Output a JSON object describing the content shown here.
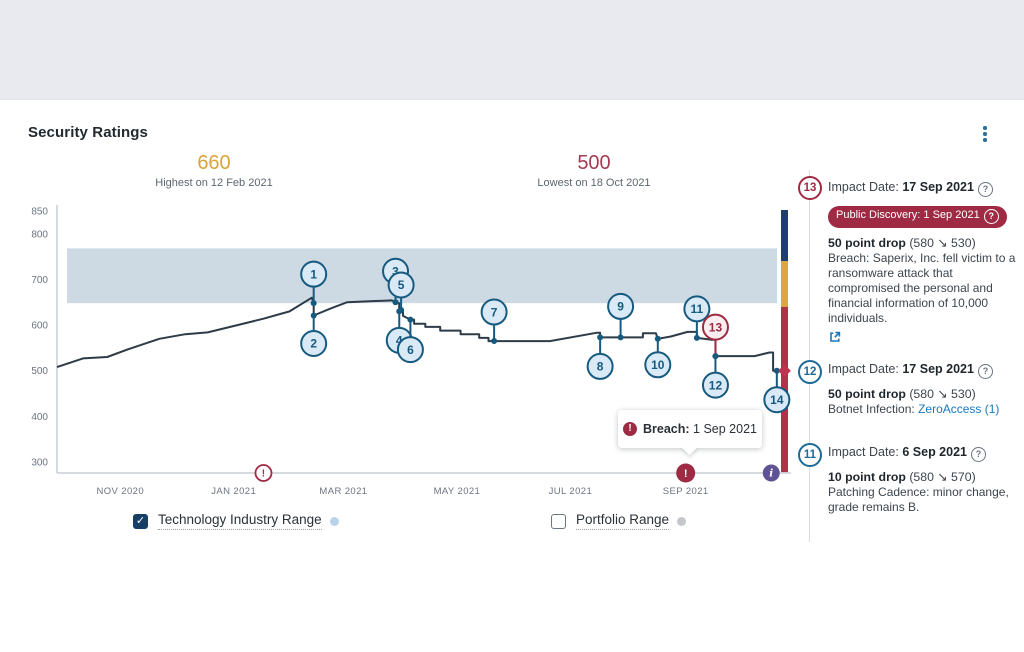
{
  "page": {
    "title": "Security Ratings"
  },
  "stats": {
    "highest": {
      "value": "660",
      "caption": "Highest on 12 Feb 2021"
    },
    "lowest": {
      "value": "500",
      "caption": "Lowest on 18 Oct 2021"
    }
  },
  "tooltip": {
    "label": "Breach:",
    "date": "1 Sep 2021"
  },
  "legend": [
    {
      "label": "Technology Industry Range",
      "checked": true,
      "dot": "#b9d3ea"
    },
    {
      "label": "Portfolio Range",
      "checked": false,
      "dot": "#c3c7cb"
    }
  ],
  "events": [
    {
      "n": "13",
      "accent": "#9e2b43",
      "impact_label": "Impact Date:",
      "impact_date": "17 Sep 2021",
      "badge": "Public Discovery: 1 Sep 2021",
      "drop": "50 point drop",
      "drop_detail": "(580 ↘ 530)",
      "desc": "Breach: Saperix, Inc. fell victim to a ransomware attack that compromised the personal and financial information of 10,000 individuals."
    },
    {
      "n": "12",
      "accent": "#1d6a96",
      "impact_label": "Impact Date:",
      "impact_date": "17 Sep 2021",
      "drop": "50 point drop",
      "drop_detail": "(580 ↘ 530)",
      "desc_prefix": "Botnet Infection: ",
      "desc_link": "ZeroAccess (1)"
    },
    {
      "n": "11",
      "accent": "#1d6a96",
      "impact_label": "Impact Date:",
      "impact_date": "6 Sep 2021",
      "drop": "10 point drop",
      "drop_detail": "(580 ↘ 570)",
      "desc": "Patching Cadence: minor change, grade remains B."
    }
  ],
  "chart_data": {
    "type": "line",
    "title": "Security Ratings over time",
    "ylim": [
      276,
      863
    ],
    "x_domain": [
      "2020-09-28",
      "2021-10-26"
    ],
    "y_ticks": [
      850,
      800,
      700,
      600,
      500,
      400,
      300
    ],
    "x_ticks": [
      {
        "label": "NOV 2020",
        "date": "2020-11-01"
      },
      {
        "label": "JAN 2021",
        "date": "2021-01-01"
      },
      {
        "label": "MAR 2021",
        "date": "2021-03-01"
      },
      {
        "label": "MAY 2021",
        "date": "2021-05-01"
      },
      {
        "label": "JUL 2021",
        "date": "2021-07-01"
      },
      {
        "label": "SEP 2021",
        "date": "2021-09-01"
      }
    ],
    "industry_band": {
      "name": "Technology Industry Range",
      "low": 648,
      "high": 768
    },
    "series": [
      {
        "name": "security-rating",
        "points": [
          [
            "2020-09-28",
            508
          ],
          [
            "2020-10-12",
            527
          ],
          [
            "2020-10-25",
            530
          ],
          [
            "2020-11-06",
            548
          ],
          [
            "2020-11-22",
            570
          ],
          [
            "2020-12-06",
            580
          ],
          [
            "2020-12-18",
            584
          ],
          [
            "2021-01-03",
            600
          ],
          [
            "2021-01-17",
            614
          ],
          [
            "2021-01-31",
            630
          ],
          [
            "2021-02-12",
            660
          ],
          [
            "2021-02-13",
            648
          ],
          [
            "2021-02-13",
            621
          ],
          [
            "2021-02-22",
            636
          ],
          [
            "2021-03-03",
            650
          ],
          [
            "2021-03-15",
            652
          ],
          [
            "2021-03-27",
            654
          ],
          [
            "2021-03-29",
            650
          ],
          [
            "2021-03-31",
            648
          ],
          [
            "2021-03-31",
            630
          ],
          [
            "2021-04-01",
            633
          ],
          [
            "2021-04-02",
            633
          ],
          [
            "2021-04-02",
            620
          ],
          [
            "2021-04-06",
            612
          ],
          [
            "2021-04-08",
            612
          ],
          [
            "2021-04-08",
            603
          ],
          [
            "2021-04-14",
            603
          ],
          [
            "2021-04-14",
            596
          ],
          [
            "2021-04-22",
            596
          ],
          [
            "2021-04-22",
            588
          ],
          [
            "2021-05-03",
            588
          ],
          [
            "2021-05-03",
            580
          ],
          [
            "2021-05-13",
            580
          ],
          [
            "2021-05-13",
            572
          ],
          [
            "2021-05-18",
            572
          ],
          [
            "2021-05-18",
            565
          ],
          [
            "2021-05-21",
            565
          ],
          [
            "2021-06-20",
            565
          ],
          [
            "2021-07-15",
            583
          ],
          [
            "2021-07-17",
            583
          ],
          [
            "2021-07-17",
            573
          ],
          [
            "2021-07-28",
            573
          ],
          [
            "2021-08-09",
            573
          ],
          [
            "2021-08-09",
            582
          ],
          [
            "2021-08-16",
            582
          ],
          [
            "2021-08-17",
            570
          ],
          [
            "2021-08-24",
            575
          ],
          [
            "2021-09-02",
            585
          ],
          [
            "2021-09-07",
            585
          ],
          [
            "2021-09-07",
            572
          ],
          [
            "2021-09-15",
            568
          ],
          [
            "2021-09-17",
            568
          ],
          [
            "2021-09-17",
            532
          ],
          [
            "2021-10-08",
            532
          ],
          [
            "2021-10-16",
            540
          ],
          [
            "2021-10-18",
            540
          ],
          [
            "2021-10-18",
            500
          ],
          [
            "2021-10-24",
            500
          ]
        ]
      }
    ],
    "markers": [
      {
        "n": "1",
        "date": "2021-02-13",
        "value": 648,
        "dir": "up",
        "off": 29,
        "red": false
      },
      {
        "n": "2",
        "date": "2021-02-13",
        "value": 621,
        "dir": "down",
        "off": 28,
        "red": false
      },
      {
        "n": "3",
        "date": "2021-03-29",
        "value": 650,
        "dir": "up",
        "off": 31,
        "red": false
      },
      {
        "n": "4",
        "date": "2021-03-31",
        "value": 630,
        "dir": "down",
        "off": 29,
        "red": false
      },
      {
        "n": "5",
        "date": "2021-04-01",
        "value": 633,
        "dir": "up",
        "off": 25,
        "red": false
      },
      {
        "n": "6",
        "date": "2021-04-06",
        "value": 612,
        "dir": "down",
        "off": 30,
        "red": false
      },
      {
        "n": "7",
        "date": "2021-05-21",
        "value": 565,
        "dir": "up",
        "off": 29,
        "red": false
      },
      {
        "n": "8",
        "date": "2021-07-17",
        "value": 573,
        "dir": "down",
        "off": 29,
        "red": false
      },
      {
        "n": "9",
        "date": "2021-07-28",
        "value": 573,
        "dir": "up",
        "off": 31,
        "red": false
      },
      {
        "n": "10",
        "date": "2021-08-17",
        "value": 570,
        "dir": "down",
        "off": 26,
        "red": false
      },
      {
        "n": "11",
        "date": "2021-09-07",
        "value": 572,
        "dir": "up",
        "off": 29,
        "red": false
      },
      {
        "n": "13",
        "date": "2021-09-17",
        "value": 532,
        "dir": "up",
        "off": 29,
        "red": true
      },
      {
        "n": "12",
        "date": "2021-09-17",
        "value": 532,
        "dir": "down",
        "off": 29,
        "red": false
      },
      {
        "n": "14",
        "date": "2021-10-20",
        "value": 500,
        "dir": "down",
        "off": 29,
        "red": false
      }
    ],
    "axis_icons": [
      {
        "type": "warning-outline",
        "date": "2021-01-17"
      },
      {
        "type": "breach",
        "date": "2021-09-01"
      },
      {
        "type": "info",
        "date": "2021-10-17"
      }
    ],
    "rating_bar": {
      "segments": [
        {
          "from": 740,
          "to": 852,
          "color": "#1f3e70"
        },
        {
          "from": 640,
          "to": 740,
          "color": "#dfa63e"
        },
        {
          "from": 278,
          "to": 640,
          "color": "#b13148"
        }
      ],
      "current": {
        "value": 500,
        "color": "#bf3350"
      }
    },
    "colors": {
      "line": "#2e3b49",
      "band": "#cdd9e3",
      "axis": "#c9ced3",
      "tick": "#6b7480",
      "marker_blue": "#175a80",
      "marker_blue_fill": "#d9e9f5",
      "marker_red": "#9e2b43",
      "marker_red_fill": "#faeef0",
      "breach": "#9e2b43",
      "info": "#5f5396"
    },
    "legend_position": "bottom",
    "grid": false
  }
}
